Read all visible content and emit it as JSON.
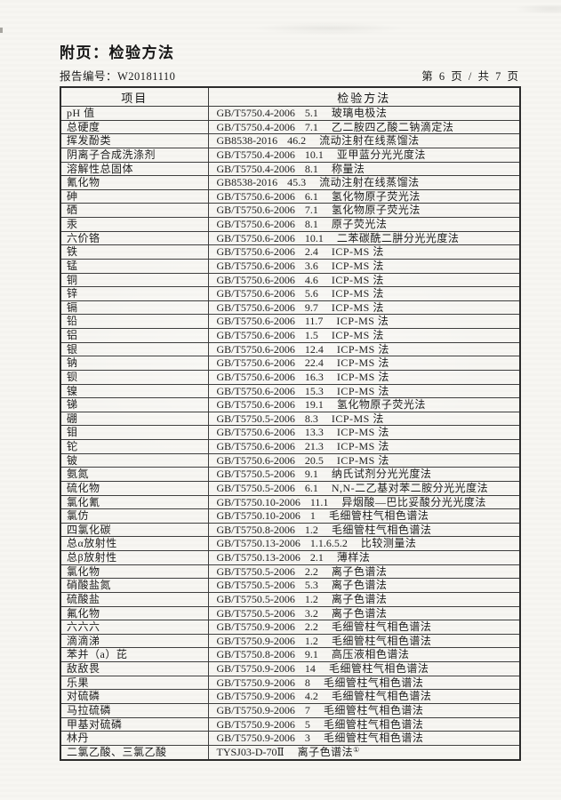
{
  "colors": {
    "paper": "#f7f6f2",
    "ink": "#1d1d1d",
    "border": "#3a3a3a"
  },
  "page": {
    "title": "附页：检验方法",
    "report_no": "报告编号：W20181110",
    "page_indicator": "第 6 页 / 共 7 页"
  },
  "table": {
    "headers": {
      "item": "项目",
      "method": "检验方法"
    },
    "rows": [
      {
        "item": "pH 值",
        "std": "GB/T5750.4-2006",
        "clause": "5.1",
        "method": "玻璃电极法",
        "sup": ""
      },
      {
        "item": "总硬度",
        "std": "GB/T5750.4-2006",
        "clause": "7.1",
        "method": "乙二胺四乙酸二钠滴定法",
        "sup": ""
      },
      {
        "item": "挥发酚类",
        "std": "GB8538-2016",
        "clause": "46.2",
        "method": "流动注射在线蒸馏法",
        "sup": ""
      },
      {
        "item": "阴离子合成洗涤剂",
        "std": "GB/T5750.4-2006",
        "clause": "10.1",
        "method": "亚甲蓝分光光度法",
        "sup": ""
      },
      {
        "item": "溶解性总固体",
        "std": "GB/T5750.4-2006",
        "clause": "8.1",
        "method": "称量法",
        "sup": ""
      },
      {
        "item": "氰化物",
        "std": "GB8538-2016",
        "clause": "45.3",
        "method": "流动注射在线蒸馏法",
        "sup": ""
      },
      {
        "item": "砷",
        "std": "GB/T5750.6-2006",
        "clause": "6.1",
        "method": "氢化物原子荧光法",
        "sup": ""
      },
      {
        "item": "硒",
        "std": "GB/T5750.6-2006",
        "clause": "7.1",
        "method": "氢化物原子荧光法",
        "sup": ""
      },
      {
        "item": "汞",
        "std": "GB/T5750.6-2006",
        "clause": "8.1",
        "method": "原子荧光法",
        "sup": ""
      },
      {
        "item": "六价铬",
        "std": "GB/T5750.6-2006",
        "clause": "10.1",
        "method": "二苯碳酰二肼分光光度法",
        "sup": ""
      },
      {
        "item": "铁",
        "std": "GB/T5750.6-2006",
        "clause": "2.4",
        "method": "ICP-MS 法",
        "sup": ""
      },
      {
        "item": "锰",
        "std": "GB/T5750.6-2006",
        "clause": "3.6",
        "method": "ICP-MS 法",
        "sup": ""
      },
      {
        "item": "铜",
        "std": "GB/T5750.6-2006",
        "clause": "4.6",
        "method": "ICP-MS 法",
        "sup": ""
      },
      {
        "item": "锌",
        "std": "GB/T5750.6-2006",
        "clause": "5.6",
        "method": "ICP-MS 法",
        "sup": ""
      },
      {
        "item": "镉",
        "std": "GB/T5750.6-2006",
        "clause": "9.7",
        "method": "ICP-MS 法",
        "sup": ""
      },
      {
        "item": "铅",
        "std": "GB/T5750.6-2006",
        "clause": "11.7",
        "method": "ICP-MS 法",
        "sup": ""
      },
      {
        "item": "铝",
        "std": "GB/T5750.6-2006",
        "clause": "1.5",
        "method": "ICP-MS 法",
        "sup": ""
      },
      {
        "item": "银",
        "std": "GB/T5750.6-2006",
        "clause": "12.4",
        "method": "ICP-MS 法",
        "sup": ""
      },
      {
        "item": "钠",
        "std": "GB/T5750.6-2006",
        "clause": "22.4",
        "method": "ICP-MS 法",
        "sup": ""
      },
      {
        "item": "钡",
        "std": "GB/T5750.6-2006",
        "clause": "16.3",
        "method": "ICP-MS 法",
        "sup": ""
      },
      {
        "item": "镍",
        "std": "GB/T5750.6-2006",
        "clause": "15.3",
        "method": "ICP-MS 法",
        "sup": ""
      },
      {
        "item": "锑",
        "std": "GB/T5750.6-2006",
        "clause": "19.1",
        "method": "氢化物原子荧光法",
        "sup": ""
      },
      {
        "item": "硼",
        "std": "GB/T5750.5-2006",
        "clause": "8.3",
        "method": "ICP-MS 法",
        "sup": ""
      },
      {
        "item": "钼",
        "std": "GB/T5750.6-2006",
        "clause": "13.3",
        "method": "ICP-MS 法",
        "sup": ""
      },
      {
        "item": "铊",
        "std": "GB/T5750.6-2006",
        "clause": "21.3",
        "method": "ICP-MS 法",
        "sup": ""
      },
      {
        "item": "铍",
        "std": "GB/T5750.6-2006",
        "clause": "20.5",
        "method": "ICP-MS 法",
        "sup": ""
      },
      {
        "item": "氨氮",
        "std": "GB/T5750.5-2006",
        "clause": "9.1",
        "method": "纳氏试剂分光光度法",
        "sup": ""
      },
      {
        "item": "硫化物",
        "std": "GB/T5750.5-2006",
        "clause": "6.1",
        "method": "N,N-二乙基对苯二胺分光光度法",
        "sup": ""
      },
      {
        "item": "氯化氰",
        "std": "GB/T5750.10-2006",
        "clause": "11.1",
        "method": "异烟酸—巴比妥酸分光光度法",
        "sup": ""
      },
      {
        "item": "氯仿",
        "std": "GB/T5750.10-2006",
        "clause": "1",
        "method": "毛细管柱气相色谱法",
        "sup": ""
      },
      {
        "item": "四氯化碳",
        "std": "GB/T5750.8-2006",
        "clause": "1.2",
        "method": "毛细管柱气相色谱法",
        "sup": ""
      },
      {
        "item": "总α放射性",
        "std": "GB/T5750.13-2006",
        "clause": "1.1.6.5.2",
        "method": "比较测量法",
        "sup": ""
      },
      {
        "item": "总β放射性",
        "std": "GB/T5750.13-2006",
        "clause": "2.1",
        "method": "薄样法",
        "sup": ""
      },
      {
        "item": "氯化物",
        "std": "GB/T5750.5-2006",
        "clause": "2.2",
        "method": "离子色谱法",
        "sup": ""
      },
      {
        "item": "硝酸盐氮",
        "std": "GB/T5750.5-2006",
        "clause": "5.3",
        "method": "离子色谱法",
        "sup": ""
      },
      {
        "item": "硫酸盐",
        "std": "GB/T5750.5-2006",
        "clause": "1.2",
        "method": "离子色谱法",
        "sup": ""
      },
      {
        "item": "氟化物",
        "std": "GB/T5750.5-2006",
        "clause": "3.2",
        "method": "离子色谱法",
        "sup": ""
      },
      {
        "item": "六六六",
        "std": "GB/T5750.9-2006",
        "clause": "2.2",
        "method": "毛细管柱气相色谱法",
        "sup": ""
      },
      {
        "item": "滴滴涕",
        "std": "GB/T5750.9-2006",
        "clause": "1.2",
        "method": "毛细管柱气相色谱法",
        "sup": ""
      },
      {
        "item": "苯并（a）芘",
        "std": "GB/T5750.8-2006",
        "clause": "9.1",
        "method": "高压液相色谱法",
        "sup": ""
      },
      {
        "item": "敌敌畏",
        "std": "GB/T5750.9-2006",
        "clause": "14",
        "method": "毛细管柱气相色谱法",
        "sup": ""
      },
      {
        "item": "乐果",
        "std": "GB/T5750.9-2006",
        "clause": "8",
        "method": "毛细管柱气相色谱法",
        "sup": ""
      },
      {
        "item": "对硫磷",
        "std": "GB/T5750.9-2006",
        "clause": "4.2",
        "method": "毛细管柱气相色谱法",
        "sup": ""
      },
      {
        "item": "马拉硫磷",
        "std": "GB/T5750.9-2006",
        "clause": "7",
        "method": "毛细管柱气相色谱法",
        "sup": ""
      },
      {
        "item": "甲基对硫磷",
        "std": "GB/T5750.9-2006",
        "clause": "5",
        "method": "毛细管柱气相色谱法",
        "sup": ""
      },
      {
        "item": "林丹",
        "std": "GB/T5750.9-2006",
        "clause": "3",
        "method": "毛细管柱气相色谱法",
        "sup": ""
      },
      {
        "item": "二氯乙酸、三氯乙酸",
        "std": "TYSJ03-D-70Ⅱ",
        "clause": "",
        "method": "离子色谱法",
        "sup": "①"
      }
    ]
  }
}
